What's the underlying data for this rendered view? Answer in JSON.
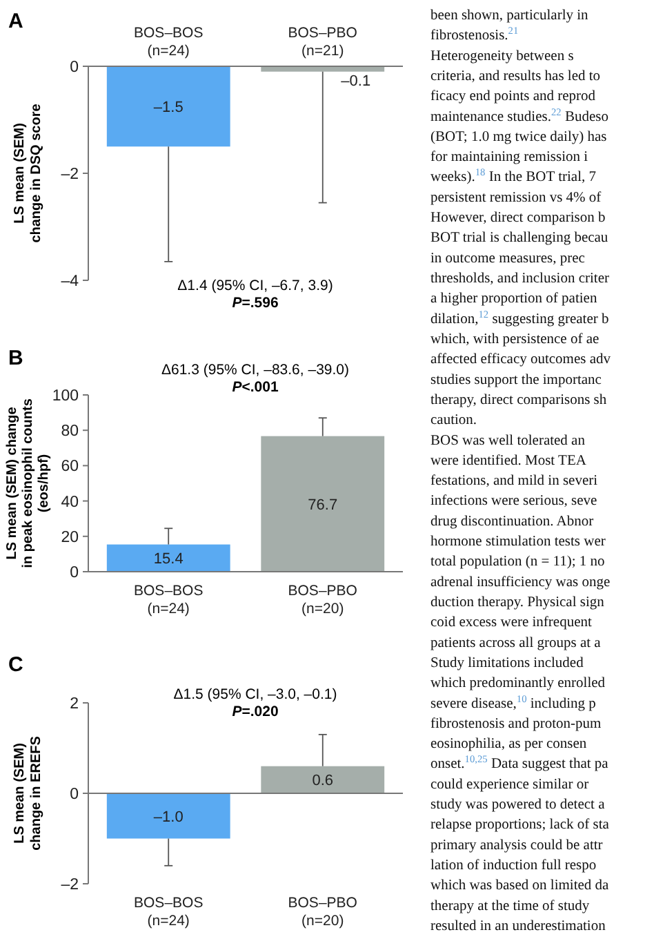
{
  "chart_data": [
    {
      "type": "bar",
      "title": "A",
      "ylabel": "LS mean (SEM)\nchange in DSQ score",
      "categories": [
        "BOS–BOS\n(n=24)",
        "BOS–PBO\n(n=21)"
      ],
      "values": [
        -1.5,
        -0.1
      ],
      "colors": [
        "#5aaaf2",
        "#a5aeaa"
      ],
      "errors": [
        [
          -3.65,
          -1.5
        ],
        [
          -2.55,
          -0.1
        ]
      ],
      "value_labels": [
        "–1.5",
        "–0.1"
      ],
      "ylim": [
        -4,
        0
      ],
      "yticks": [
        {
          "value": 0,
          "label": "0"
        },
        {
          "value": -2,
          "label": "–2"
        },
        {
          "value": -4,
          "label": "–4"
        }
      ],
      "annotations": [
        "Δ1.4 (95% CI, –6.7, 3.9)",
        "P=.596"
      ]
    },
    {
      "type": "bar",
      "title": "B",
      "ylabel": "LS mean (SEM) change\nin peak eosinophil counts\n(eos/hpf)",
      "categories": [
        "BOS–BOS\n(n=24)",
        "BOS–PBO\n(n=20)"
      ],
      "values": [
        15.4,
        76.7
      ],
      "colors": [
        "#5aaaf2",
        "#a5aeaa"
      ],
      "errors": [
        [
          15.4,
          24.5
        ],
        [
          76.7,
          87
        ]
      ],
      "value_labels": [
        "15.4",
        "76.7"
      ],
      "ylim": [
        0,
        100
      ],
      "yticks": [
        0,
        20,
        40,
        60,
        80,
        100
      ],
      "annotations": [
        "Δ61.3 (95% CI, –83.6, –39.0)",
        "P<.001"
      ]
    },
    {
      "type": "bar",
      "title": "C",
      "ylabel": "LS mean (SEM)\nchange in EREFS",
      "categories": [
        "BOS–BOS\n(n=24)",
        "BOS–PBO\n(n=20)"
      ],
      "values": [
        -1.0,
        0.6
      ],
      "colors": [
        "#5aaaf2",
        "#a5aeaa"
      ],
      "errors": [
        [
          -1.6,
          -1.0
        ],
        [
          0.6,
          1.3
        ]
      ],
      "value_labels": [
        "–1.0",
        "0.6"
      ],
      "ylim": [
        -2,
        2
      ],
      "yticks": [
        {
          "value": -2,
          "label": "–2"
        },
        {
          "value": 0,
          "label": "0"
        },
        {
          "value": 2,
          "label": "2"
        }
      ],
      "annotations": [
        "Δ1.5 (95% CI, –3.0, –0.1)",
        "P=.020"
      ]
    },
    {
      "type": "other",
      "annotations": [
        "been shown, particularly in",
        "fibrostenosis.$^{21}$",
        "Heterogeneity between s",
        "criteria, and results has led to",
        "ficacy end points and reprod",
        "maintenance studies.$^{22}$ Budeso",
        "(BOT; 1.0 mg twice daily) has",
        "for maintaining remission i",
        "weeks).$^{18}$ In the BOT trial, 7",
        "persistent remission vs 4% of",
        "However, direct comparison b",
        "BOT trial is challenging becau",
        "in outcome measures, prec",
        "thresholds, and inclusion criter",
        "a higher proportion of patien",
        "dilation,$^{12}$ suggesting greater b",
        "which, with persistence of ae",
        "affected efficacy outcomes adv",
        "studies support the importanc",
        "therapy, direct comparisons sh",
        "caution.",
        "BOS was well tolerated an",
        "were identified. Most TEA",
        "festations, and mild in severi",
        "infections were serious, seve",
        "drug discontinuation. Abnor",
        "hormone stimulation tests wer",
        "total population (n = 11); 1 no",
        "adrenal insufficiency was onge",
        "duction therapy. Physical sign",
        "coid excess were infrequent",
        "patients across all groups at a",
        "Study limitations included",
        "which predominantly enrolled",
        "severe disease,$^{10}$ including p",
        "fibrostenosis and proton-pum",
        "eosinophilia, as per consen",
        "onset.$^{10,25}$ Data suggest that pa",
        "could experience similar or",
        "study was powered to detect a",
        "relapse proportions; lack of sta",
        "primary analysis could be attr",
        "lation of induction full respo",
        "which was based on limited da",
        "therapy at the time of study",
        "resulted in an underestimation"
      ]
    }
  ]
}
